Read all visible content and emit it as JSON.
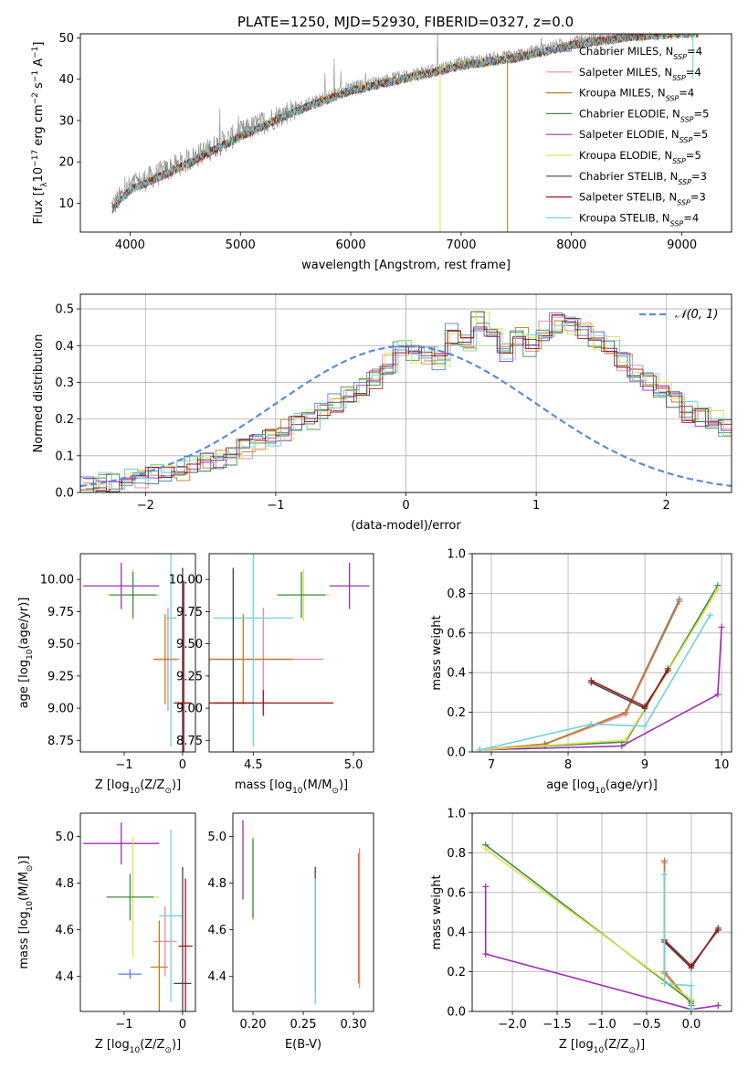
{
  "figure": {
    "title": "PLATE=1250, MJD=52930, FIBERID=0327, z=0.0"
  },
  "series_legend": [
    {
      "name": "Chabrier MILES",
      "suffix": "4",
      "color": "#5b7fd6"
    },
    {
      "name": "Salpeter MILES",
      "suffix": "4",
      "color": "#e8869b"
    },
    {
      "name": "Kroupa MILES",
      "suffix": "4",
      "color": "#c07f22"
    },
    {
      "name": "Chabrier ELODIE",
      "suffix": "5",
      "color": "#3f8a4a"
    },
    {
      "name": "Salpeter ELODIE",
      "suffix": "5",
      "color": "#9a2fb0"
    },
    {
      "name": "Kroupa ELODIE",
      "suffix": "5",
      "color": "#dde24a"
    },
    {
      "name": "Chabrier STELIB",
      "suffix": "3",
      "color": "#444444"
    },
    {
      "name": "Salpeter STELIB",
      "suffix": "3",
      "color": "#a01818"
    },
    {
      "name": "Kroupa STELIB",
      "suffix": "4",
      "color": "#6fd4d8"
    }
  ],
  "chart_data": [
    {
      "id": "spectrum",
      "type": "line",
      "title": "PLATE=1250, MJD=52930, FIBERID=0327, z=0.0",
      "xlabel": "wavelength [Angstrom, rest frame]",
      "ylabel_main": "Flux [f",
      "ylabel_sub": "λ",
      "ylabel_rest": "10",
      "ylabel_exp": "−17",
      "ylabel_tail": " erg cm",
      "ylabel_exp2": "−2",
      "ylabel_tail2": " s",
      "ylabel_exp3": "−1",
      "ylabel_tail3": " A",
      "ylabel_exp4": "−1",
      "ylabel_end": "]",
      "xlim": [
        3550,
        9450
      ],
      "ylim": [
        3,
        51
      ],
      "xticks": [
        4000,
        5000,
        6000,
        7000,
        8000,
        9000
      ],
      "yticks": [
        10,
        20,
        30,
        40,
        50
      ],
      "data_wavelength_range": [
        3830,
        9150
      ],
      "continuum_anchors": [
        [
          3830,
          9
        ],
        [
          4000,
          14
        ],
        [
          4500,
          20
        ],
        [
          5000,
          27
        ],
        [
          5500,
          33
        ],
        [
          6000,
          38
        ],
        [
          6500,
          41
        ],
        [
          7000,
          44
        ],
        [
          7500,
          46
        ],
        [
          8000,
          49
        ],
        [
          8500,
          51
        ],
        [
          9100,
          52
        ]
      ],
      "dropouts": [
        {
          "wavelength": 6810,
          "floor": 3,
          "color": "#dde24a"
        },
        {
          "wavelength": 7420,
          "floor": 3,
          "color": "#c07f22"
        },
        {
          "wavelength": 9100,
          "floor": 40,
          "color": "#6fd4d8"
        }
      ],
      "legend_location": "right"
    },
    {
      "id": "residuals",
      "type": "histogram",
      "xlabel": "(data-model)/error",
      "ylabel": "Normed distribution",
      "xlim": [
        -2.5,
        2.5
      ],
      "ylim": [
        0,
        0.54
      ],
      "xticks": [
        -2,
        -1,
        0,
        1,
        2
      ],
      "yticks": [
        0.0,
        0.1,
        0.2,
        0.3,
        0.4,
        0.5
      ],
      "bin_width": 0.1,
      "bin_start": -2.5,
      "bin_heights": [
        0.02,
        0.025,
        0.03,
        0.035,
        0.04,
        0.05,
        0.055,
        0.06,
        0.07,
        0.08,
        0.09,
        0.1,
        0.12,
        0.13,
        0.15,
        0.17,
        0.19,
        0.2,
        0.22,
        0.24,
        0.27,
        0.29,
        0.31,
        0.35,
        0.39,
        0.38,
        0.37,
        0.36,
        0.43,
        0.41,
        0.47,
        0.43,
        0.38,
        0.42,
        0.4,
        0.44,
        0.46,
        0.45,
        0.44,
        0.42,
        0.4,
        0.36,
        0.33,
        0.3,
        0.28,
        0.25,
        0.22,
        0.21,
        0.2,
        0.17,
        0.15,
        0.12,
        0.1,
        0.09,
        0.08,
        0.07,
        0.07,
        0.06,
        0.05,
        0.04,
        0.03,
        0.03,
        0.025,
        0.02,
        0.02,
        0.02,
        0.015,
        0.015,
        0.01,
        0.01
      ],
      "gaussian_label": "𝒩(0, 1)",
      "gaussian_color": "#5b8bd9",
      "legend_location": "top-right",
      "grid": true
    },
    {
      "id": "age_vs_Z",
      "type": "errorbar",
      "xlabel_main": "Z [log",
      "xlabel_sub": "10",
      "xlabel_rest": "(Z/Z",
      "xlabel_sun": "⊙",
      "xlabel_end": ")]",
      "ylabel_main": "age  [log",
      "ylabel_sub": "10",
      "ylabel_rest": "(age/yr)]",
      "xlim": [
        -1.75,
        0.22
      ],
      "ylim": [
        8.66,
        10.2
      ],
      "xticks": [
        -1,
        0
      ],
      "yticks": [
        8.75,
        9.0,
        9.25,
        9.5,
        9.75,
        10.0
      ],
      "points": [
        {
          "x": -1.05,
          "y": 9.95,
          "xerr": 0.65,
          "yerr": 0.18,
          "series": 4
        },
        {
          "x": -0.85,
          "y": 9.88,
          "xerr": 0.45,
          "yerr": 0.2,
          "series": 5
        },
        {
          "x": -0.85,
          "y": 9.88,
          "xerr": 0.4,
          "yerr": 0.18,
          "series": 3
        },
        {
          "x": -0.25,
          "y": 9.38,
          "xerr": 0.2,
          "yerr": 0.4,
          "series": 1
        },
        {
          "x": -0.3,
          "y": 9.38,
          "xerr": 0.2,
          "yerr": 0.35,
          "series": 2
        },
        {
          "x": -0.2,
          "y": 9.7,
          "xerr": 0.1,
          "yerr": 1.0,
          "series": 8
        },
        {
          "x": 0.0,
          "y": 9.04,
          "xerr": 0.15,
          "yerr": 1.05,
          "series": 6
        },
        {
          "x": 0.02,
          "y": 9.04,
          "xerr": 0.12,
          "yerr": 0.95,
          "series": 7
        }
      ]
    },
    {
      "id": "age_vs_mass",
      "type": "errorbar",
      "xlabel_main": "mass [log",
      "xlabel_sub": "10",
      "xlabel_rest": "(M/M",
      "xlabel_sun": "⊙",
      "xlabel_end": ")]",
      "xlim": [
        4.28,
        5.1
      ],
      "ylim": [
        8.66,
        10.2
      ],
      "xticks": [
        4.5,
        5.0
      ],
      "yticks": [
        8.75,
        9.0,
        9.25,
        9.5,
        9.75,
        10.0
      ],
      "points": [
        {
          "x": 4.98,
          "y": 9.95,
          "xerr": 0.1,
          "yerr": 0.18,
          "series": 4
        },
        {
          "x": 4.75,
          "y": 9.88,
          "xerr": 0.13,
          "yerr": 0.2,
          "series": 5
        },
        {
          "x": 4.74,
          "y": 9.88,
          "xerr": 0.12,
          "yerr": 0.18,
          "series": 3
        },
        {
          "x": 4.55,
          "y": 9.38,
          "xerr": 0.3,
          "yerr": 0.4,
          "series": 1
        },
        {
          "x": 4.45,
          "y": 9.38,
          "xerr": 0.25,
          "yerr": 0.35,
          "series": 2
        },
        {
          "x": 4.5,
          "y": 9.7,
          "xerr": 0.2,
          "yerr": 1.0,
          "series": 8
        },
        {
          "x": 4.4,
          "y": 9.04,
          "xerr": 0.1,
          "yerr": 1.05,
          "series": 6
        },
        {
          "x": 4.55,
          "y": 9.04,
          "xerr": 0.35,
          "yerr": 0.1,
          "series": 7
        }
      ]
    },
    {
      "id": "massweight_vs_age",
      "type": "line",
      "xlabel_main": "age  [log",
      "xlabel_sub": "10",
      "xlabel_rest": "(age/yr)]",
      "ylabel": "mass weight",
      "xlim": [
        6.75,
        10.13
      ],
      "ylim": [
        0,
        1.0
      ],
      "xticks": [
        7,
        8,
        9,
        10
      ],
      "yticks": [
        0.0,
        0.2,
        0.4,
        0.6,
        0.8,
        1.0
      ],
      "grid": true,
      "series": [
        {
          "series": 0,
          "x": [
            6.85,
            7.7,
            8.75,
            9.45
          ],
          "y": [
            0.01,
            0.04,
            0.2,
            0.77
          ]
        },
        {
          "series": 1,
          "x": [
            6.85,
            7.7,
            8.75,
            9.45
          ],
          "y": [
            0.01,
            0.04,
            0.19,
            0.76
          ]
        },
        {
          "series": 2,
          "x": [
            6.85,
            7.7,
            8.75,
            9.45
          ],
          "y": [
            0.01,
            0.04,
            0.2,
            0.76
          ]
        },
        {
          "series": 3,
          "x": [
            6.85,
            7.7,
            8.75,
            9.95
          ],
          "y": [
            0.01,
            0.03,
            0.05,
            0.84
          ]
        },
        {
          "series": 4,
          "x": [
            6.85,
            8.7,
            9.95,
            10.0
          ],
          "y": [
            0.01,
            0.03,
            0.29,
            0.63
          ]
        },
        {
          "series": 5,
          "x": [
            6.85,
            8.75,
            9.95
          ],
          "y": [
            0.01,
            0.06,
            0.82
          ]
        },
        {
          "series": 6,
          "x": [
            8.3,
            9.0,
            9.3
          ],
          "y": [
            0.35,
            0.22,
            0.42
          ]
        },
        {
          "series": 7,
          "x": [
            8.3,
            9.0,
            9.3
          ],
          "y": [
            0.36,
            0.23,
            0.41
          ]
        },
        {
          "series": 8,
          "x": [
            6.85,
            8.3,
            9.0,
            9.85
          ],
          "y": [
            0.01,
            0.14,
            0.13,
            0.69
          ]
        }
      ]
    },
    {
      "id": "mass_vs_Z",
      "type": "errorbar",
      "xlabel_main": "Z [log",
      "xlabel_sub": "10",
      "xlabel_rest": "(Z/Z",
      "xlabel_sun": "⊙",
      "xlabel_end": ")]",
      "ylabel_main": "mass [log",
      "ylabel_sub": "10",
      "ylabel_rest": "(M/M",
      "ylabel_sun": "⊙",
      "ylabel_end": ")]",
      "xlim": [
        -1.75,
        0.22
      ],
      "ylim": [
        4.25,
        5.1
      ],
      "xticks": [
        -1,
        0
      ],
      "yticks": [
        4.4,
        4.6,
        4.8,
        5.0
      ],
      "points": [
        {
          "x": -1.05,
          "y": 4.97,
          "xerr": 0.65,
          "yerr": 0.09,
          "series": 4
        },
        {
          "x": -0.85,
          "y": 4.74,
          "xerr": 0.45,
          "yerr": 0.26,
          "series": 5
        },
        {
          "x": -0.9,
          "y": 4.74,
          "xerr": 0.4,
          "yerr": 0.1,
          "series": 3
        },
        {
          "x": -0.9,
          "y": 4.41,
          "xerr": 0.2,
          "yerr": 0.02,
          "series": 0
        },
        {
          "x": -0.3,
          "y": 4.55,
          "xerr": 0.2,
          "yerr": 0.15,
          "series": 1
        },
        {
          "x": -0.4,
          "y": 4.44,
          "xerr": 0.15,
          "yerr": 0.2,
          "series": 2
        },
        {
          "x": -0.2,
          "y": 4.66,
          "xerr": 0.2,
          "yerr": 0.37,
          "series": 8
        },
        {
          "x": 0.0,
          "y": 4.37,
          "xerr": 0.15,
          "yerr": 0.5,
          "series": 6
        },
        {
          "x": 0.05,
          "y": 4.53,
          "xerr": 0.12,
          "yerr": 0.29,
          "series": 7
        }
      ]
    },
    {
      "id": "mass_vs_EBV",
      "type": "errorbar",
      "xlabel": "E(B-V)",
      "xlim": [
        0.18,
        0.32
      ],
      "ylim": [
        4.25,
        5.1
      ],
      "xticks": [
        0.2,
        0.25,
        0.3
      ],
      "yticks": [
        4.4,
        4.6,
        4.8,
        5.0
      ],
      "points": [
        {
          "x": 0.19,
          "y": 4.9,
          "xerr": 0.0,
          "yerr": 0.17,
          "series": 4
        },
        {
          "x": 0.2,
          "y": 4.82,
          "xerr": 0.0,
          "yerr": 0.18,
          "series": 5
        },
        {
          "x": 0.2,
          "y": 4.82,
          "xerr": 0.0,
          "yerr": 0.17,
          "series": 3
        },
        {
          "x": 0.262,
          "y": 4.6,
          "xerr": 0.0,
          "yerr": 0.27,
          "series": 6
        },
        {
          "x": 0.262,
          "y": 4.55,
          "xerr": 0.0,
          "yerr": 0.27,
          "series": 8
        },
        {
          "x": 0.305,
          "y": 4.65,
          "xerr": 0.0,
          "yerr": 0.28,
          "series": 2
        },
        {
          "x": 0.306,
          "y": 4.65,
          "xerr": 0.0,
          "yerr": 0.3,
          "series": 1
        }
      ]
    },
    {
      "id": "massweight_vs_Z",
      "type": "line",
      "xlabel_main": "Z [log",
      "xlabel_sub": "10",
      "xlabel_rest": "(Z/Z",
      "xlabel_sun": "⊙",
      "xlabel_end": ")]",
      "ylabel": "mass weight",
      "xlim": [
        -2.45,
        0.45
      ],
      "ylim": [
        0,
        1.0
      ],
      "xticks": [
        -2.0,
        -1.5,
        -1.0,
        -0.5,
        0.0
      ],
      "yticks": [
        0.0,
        0.2,
        0.4,
        0.6,
        0.8,
        1.0
      ],
      "grid": true,
      "series": [
        {
          "series": 0,
          "x": [
            -0.3,
            -0.3,
            0.0,
            0.0
          ],
          "y": [
            0.76,
            0.2,
            0.04,
            0.01
          ]
        },
        {
          "series": 1,
          "x": [
            -0.3,
            -0.3,
            0.0,
            0.0
          ],
          "y": [
            0.75,
            0.19,
            0.04,
            0.01
          ]
        },
        {
          "series": 2,
          "x": [
            -0.3,
            -0.3,
            0.0,
            0.0
          ],
          "y": [
            0.76,
            0.2,
            0.04,
            0.01
          ]
        },
        {
          "series": 3,
          "x": [
            -2.3,
            0.0,
            0.0
          ],
          "y": [
            0.84,
            0.05,
            0.03
          ]
        },
        {
          "series": 4,
          "x": [
            -2.3,
            -2.3,
            0.0,
            0.3
          ],
          "y": [
            0.63,
            0.29,
            0.01,
            0.03
          ]
        },
        {
          "series": 5,
          "x": [
            -2.3,
            0.0,
            0.0
          ],
          "y": [
            0.82,
            0.06,
            0.01
          ]
        },
        {
          "series": 6,
          "x": [
            -0.3,
            0.0,
            0.3
          ],
          "y": [
            0.35,
            0.22,
            0.42
          ]
        },
        {
          "series": 7,
          "x": [
            -0.3,
            0.0,
            0.3
          ],
          "y": [
            0.36,
            0.23,
            0.41
          ]
        },
        {
          "series": 8,
          "x": [
            -0.3,
            -0.3,
            0.0,
            0.0
          ],
          "y": [
            0.69,
            0.14,
            0.13,
            0.01
          ]
        }
      ]
    }
  ]
}
